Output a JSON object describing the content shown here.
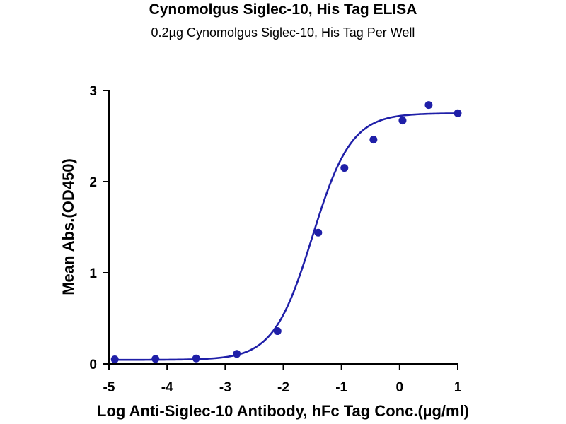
{
  "chart_data": {
    "type": "scatter",
    "title": "Cynomolgus Siglec-10, His Tag ELISA",
    "subtitle": "0.2µg Cynomolgus Siglec-10, His Tag Per Well",
    "xlabel": "Log Anti-Siglec-10 Antibody, hFc Tag Conc.(µg/ml)",
    "ylabel": "Mean Abs.(OD450)",
    "xlim": [
      -5,
      1
    ],
    "ylim": [
      0,
      3
    ],
    "x_ticks": [
      "-5",
      "-4",
      "-3",
      "-2",
      "-1",
      "0",
      "1"
    ],
    "y_ticks": [
      "0",
      "1",
      "2",
      "3"
    ],
    "grid": false,
    "legend": "none",
    "color": "#1f1fa8",
    "series": [
      {
        "x": [
          -4.9,
          -4.2,
          -3.5,
          -2.8,
          -2.1,
          -1.4,
          -0.95,
          -0.45,
          0.05,
          0.5,
          1.0
        ],
        "y": [
          0.05,
          0.055,
          0.06,
          0.11,
          0.36,
          1.44,
          2.15,
          2.46,
          2.67,
          2.84,
          2.75
        ]
      }
    ],
    "fit": {
      "type": "four-parameter logistic",
      "bottom": 0.045,
      "top": 2.75,
      "ec50_log": -1.5,
      "hill": 1.3
    }
  }
}
